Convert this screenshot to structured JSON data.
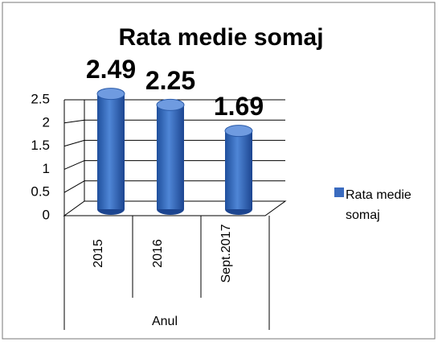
{
  "chart_data": {
    "type": "bar",
    "title": "Rata medie somaj",
    "categories": [
      "2015",
      "2016",
      "Sept.2017"
    ],
    "series": [
      {
        "name": "Rata medie somaj",
        "color": "#3a6bbf",
        "values": [
          2.49,
          2.25,
          1.69
        ]
      }
    ],
    "x_label": "Anul",
    "ylim": [
      0,
      2.5
    ],
    "yticks": [
      0,
      0.5,
      1,
      1.5,
      2,
      2.5
    ],
    "grid": true,
    "legend": "right"
  }
}
